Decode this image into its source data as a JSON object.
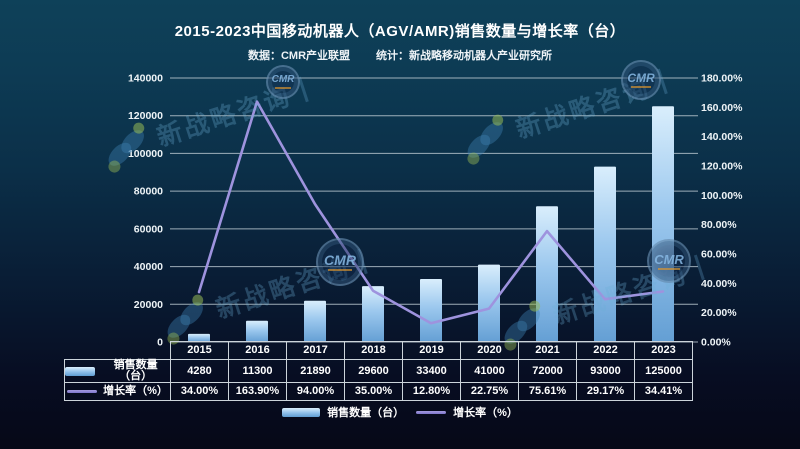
{
  "header": {
    "title": "2015-2023中国移动机器人（AGV/AMR)销售数量与增长率（台）",
    "source": "数据：CMR产业联盟",
    "stat": "统计：新战略移动机器人产业研究所"
  },
  "chart_data": {
    "type": "bar+line",
    "categories": [
      "2015",
      "2016",
      "2017",
      "2018",
      "2019",
      "2020",
      "2021",
      "2022",
      "2023"
    ],
    "series": [
      {
        "name": "销售数量（台）",
        "type": "bar",
        "axis": "left",
        "values": [
          4280,
          11300,
          21890,
          29600,
          33400,
          41000,
          72000,
          93000,
          125000
        ]
      },
      {
        "name": "增长率（%）",
        "type": "line",
        "axis": "right",
        "values": [
          34.0,
          163.9,
          94.0,
          35.0,
          12.8,
          22.75,
          75.61,
          29.17,
          34.41
        ]
      }
    ],
    "left_axis": {
      "min": 0,
      "max": 140000,
      "step": 20000,
      "tick_labels": [
        "0",
        "20000",
        "40000",
        "60000",
        "80000",
        "100000",
        "120000",
        "140000"
      ]
    },
    "right_axis": {
      "min": 0,
      "max": 180,
      "step": 20,
      "tick_labels": [
        "0.00%",
        "20.00%",
        "40.00%",
        "60.00%",
        "80.00%",
        "100.00%",
        "120.00%",
        "140.00%",
        "160.00%",
        "180.00%"
      ]
    },
    "grid": true,
    "legend_position": "bottom"
  },
  "table": {
    "years": [
      "2015",
      "2016",
      "2017",
      "2018",
      "2019",
      "2020",
      "2021",
      "2022",
      "2023"
    ],
    "rows": [
      {
        "label": "销售数量（台）",
        "swatch": "bar",
        "values": [
          "4280",
          "11300",
          "21890",
          "29600",
          "33400",
          "41000",
          "72000",
          "93000",
          "125000"
        ]
      },
      {
        "label": "增长率（%）",
        "swatch": "line",
        "values": [
          "34.00%",
          "163.90%",
          "94.00%",
          "35.00%",
          "12.80%",
          "22.75%",
          "75.61%",
          "29.17%",
          "34.41%"
        ]
      }
    ]
  },
  "legend": {
    "bar_label": "销售数量（台）",
    "line_label": "增长率（%）"
  },
  "watermark": {
    "text": "新战略咨询",
    "badge_text": "CMR"
  },
  "colors": {
    "bar_top": "#d9eefc",
    "bar_mid": "#9cc8ee",
    "bar_bottom": "#649fd4",
    "line": "#9e93de",
    "grid": "#b9c7cf",
    "text": "#eef4f7",
    "background_top": "#0e4159",
    "background_bottom": "#060817"
  }
}
